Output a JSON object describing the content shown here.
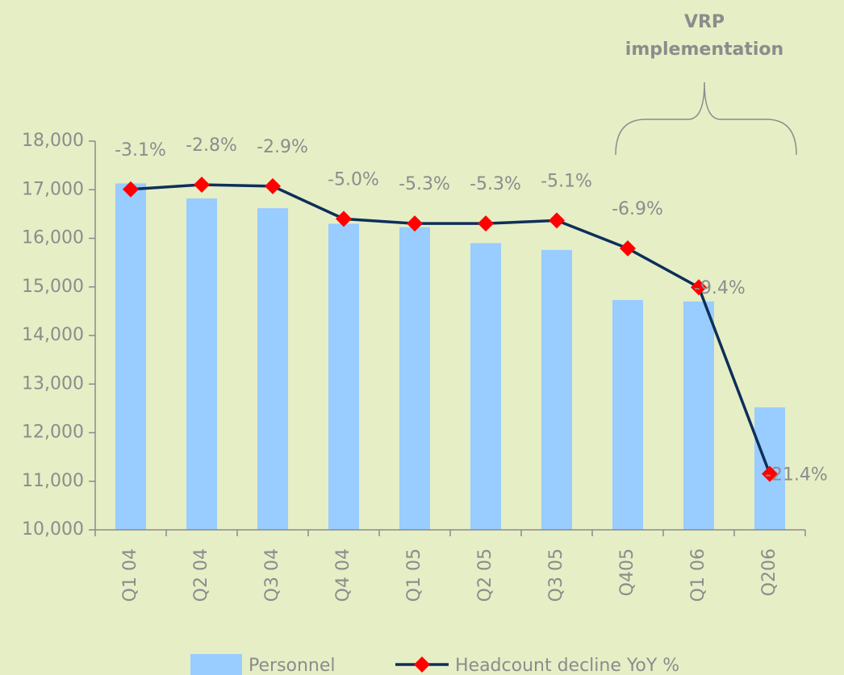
{
  "chart_data": {
    "type": "bar_line",
    "annotation": [
      "VRP",
      "implementation"
    ],
    "categories": [
      "Q1 04",
      "Q2 04",
      "Q3 04",
      "Q4 04",
      "Q1 05",
      "Q2 05",
      "Q3 05",
      "Q405",
      "Q1 06",
      "Q206"
    ],
    "series": [
      {
        "name": "Personnel",
        "type": "bar",
        "color": "#99ccff",
        "values": [
          17130,
          16820,
          16620,
          16300,
          16230,
          15900,
          15760,
          14730,
          14700,
          12520
        ]
      },
      {
        "name": "Headcount decline YoY %",
        "type": "line",
        "axis": "y2",
        "color": "#0d2f5a",
        "marker_color": "#ff0000",
        "values": [
          -3.1,
          -2.8,
          -2.9,
          -5.0,
          -5.3,
          -5.3,
          -5.1,
          -6.9,
          -9.4,
          -21.4
        ],
        "value_labels": [
          "-3.1%",
          "-2.8%",
          "-2.9%",
          "-5.0%",
          "-5.3%",
          "-5.3%",
          "-5.1%",
          "-6.9%",
          "-9.4%",
          "-21.4%"
        ]
      }
    ],
    "ylim": [
      10000,
      18000
    ],
    "yticks": [
      {
        "value": 10000,
        "label": "10,000"
      },
      {
        "value": 11000,
        "label": "11,000"
      },
      {
        "value": 12000,
        "label": "12,000"
      },
      {
        "value": 13000,
        "label": "13,000"
      },
      {
        "value": 14000,
        "label": "14,000"
      },
      {
        "value": 15000,
        "label": "15,000"
      },
      {
        "value": 16000,
        "label": "16,000"
      },
      {
        "value": 17000,
        "label": "17,000"
      },
      {
        "value": 18000,
        "label": "18,000"
      }
    ],
    "y2lim": [
      -25,
      0
    ],
    "legend": "bottom"
  }
}
